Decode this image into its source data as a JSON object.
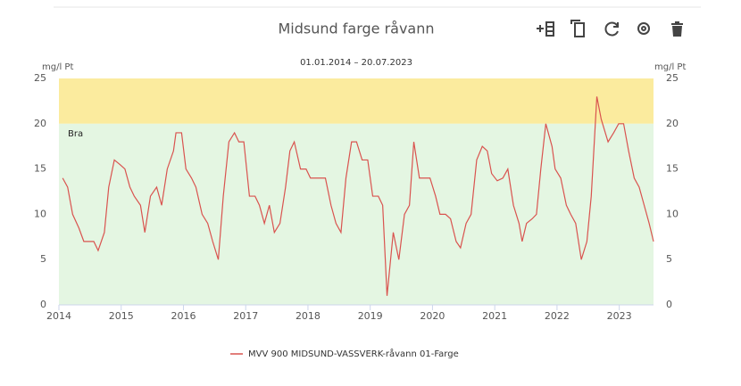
{
  "chart_data": {
    "type": "line",
    "title": "Midsund farge råvann",
    "subtitle": "01.01.2014 – 20.07.2023",
    "y_axis_label": "mg/l Pt",
    "y2_axis_label": "mg/l Pt",
    "x": [
      2014.06,
      2014.14,
      2014.22,
      2014.32,
      2014.4,
      2014.5,
      2014.56,
      2014.63,
      2014.73,
      2014.8,
      2014.89,
      2014.98,
      2015.06,
      2015.14,
      2015.21,
      2015.31,
      2015.38,
      2015.47,
      2015.57,
      2015.65,
      2015.74,
      2015.84,
      2015.88,
      2015.97,
      2016.04,
      2016.13,
      2016.2,
      2016.3,
      2016.39,
      2016.47,
      2016.56,
      2016.64,
      2016.73,
      2016.82,
      2016.89,
      2016.97,
      2017.06,
      2017.15,
      2017.22,
      2017.3,
      2017.38,
      2017.46,
      2017.55,
      2017.64,
      2017.71,
      2017.78,
      2017.88,
      2017.97,
      2018.04,
      2018.12,
      2018.2,
      2018.28,
      2018.37,
      2018.45,
      2018.53,
      2018.61,
      2018.7,
      2018.78,
      2018.87,
      2018.96,
      2019.04,
      2019.13,
      2019.2,
      2019.27,
      2019.37,
      2019.46,
      2019.55,
      2019.63,
      2019.7,
      2019.79,
      2019.86,
      2019.96,
      2020.05,
      2020.12,
      2020.21,
      2020.29,
      2020.38,
      2020.45,
      2020.54,
      2020.62,
      2020.71,
      2020.8,
      2020.88,
      2020.95,
      2021.04,
      2021.13,
      2021.21,
      2021.3,
      2021.39,
      2021.44,
      2021.51,
      2021.6,
      2021.67,
      2021.74,
      2021.82,
      2021.92,
      2021.97,
      2022.06,
      2022.15,
      2022.22,
      2022.3,
      2022.39,
      2022.48,
      2022.55,
      2022.64,
      2022.71,
      2022.82,
      2022.91,
      2022.99,
      2023.07,
      2023.15,
      2023.24,
      2023.32,
      2023.4,
      2023.48,
      2023.55
    ],
    "series": [
      {
        "name": "MVV 900 MIDSUND-VASSVERK-råvann 01-Farge",
        "color": "#d9534f",
        "values": [
          14,
          13,
          10,
          8.5,
          7,
          7,
          7,
          6,
          8,
          13,
          16,
          15.5,
          15,
          13,
          12,
          11,
          8,
          12,
          13,
          11,
          15,
          17,
          19,
          19,
          15,
          14,
          13,
          10,
          9,
          7,
          5,
          12,
          18,
          19,
          18,
          18,
          12,
          12,
          11,
          9,
          11,
          8,
          9,
          13,
          17,
          18,
          15,
          15,
          14,
          14,
          14,
          14,
          11,
          9,
          8,
          14,
          18,
          18,
          16,
          16,
          12,
          12,
          11,
          1,
          8,
          5,
          10,
          11,
          18,
          14,
          14,
          14,
          12,
          10,
          10,
          9.5,
          7,
          6.3,
          9,
          10,
          16,
          17.5,
          17,
          14.5,
          13.7,
          14,
          15,
          11,
          9,
          7,
          9,
          9.5,
          10,
          15,
          20,
          17.5,
          15,
          14,
          11,
          10,
          9,
          5,
          7,
          12,
          23,
          20.5,
          18,
          19,
          20,
          20,
          17,
          14,
          13,
          11,
          9,
          7
        ]
      }
    ],
    "bands": [
      {
        "from": 20,
        "to": 25,
        "color": "#fbeb9e"
      },
      {
        "from": 0,
        "to": 20,
        "color": "#e4f6e2",
        "label": "Bra"
      }
    ],
    "xlim": [
      2014,
      2023.55
    ],
    "xticks": [
      2014,
      2015,
      2016,
      2017,
      2018,
      2019,
      2020,
      2021,
      2022,
      2023
    ],
    "ylim": [
      0,
      25
    ],
    "yticks": [
      0,
      5,
      10,
      15,
      20,
      25
    ],
    "y2lim": [
      0,
      25
    ],
    "y2ticks": [
      0,
      5,
      10,
      15,
      20,
      25
    ],
    "legend": "bottom"
  }
}
